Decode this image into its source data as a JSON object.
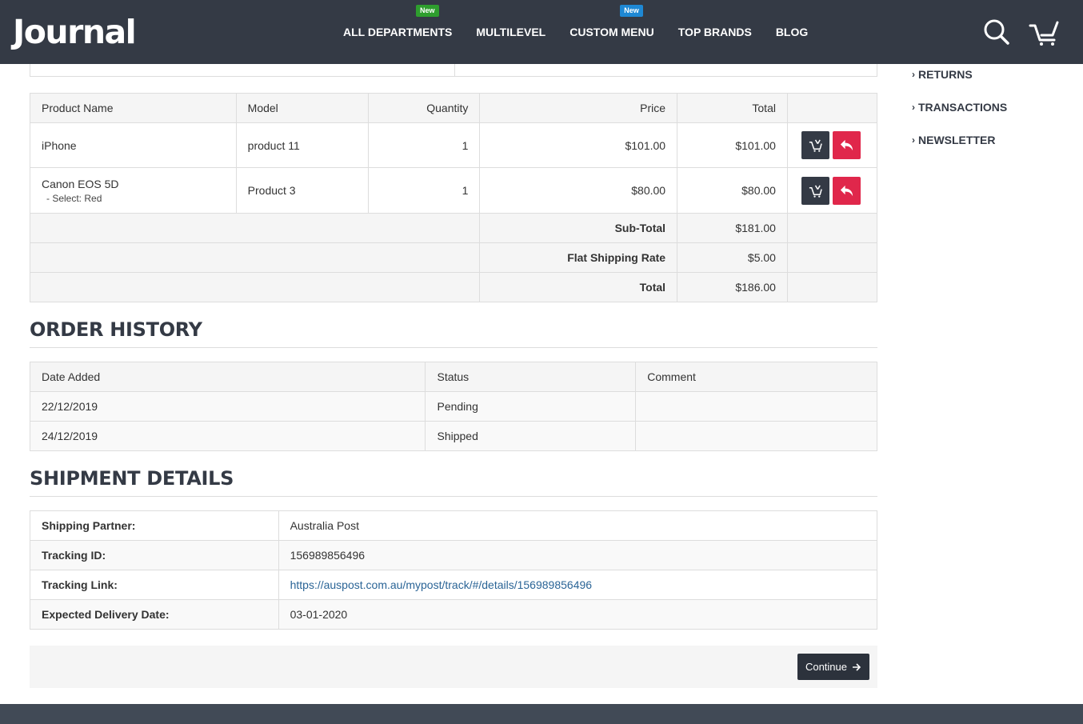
{
  "header": {
    "logo": "Journal",
    "nav": [
      {
        "label": "ALL DEPARTMENTS",
        "badge": "New",
        "badge_color": "#2e9e2e"
      },
      {
        "label": "MULTILEVEL",
        "badge": ""
      },
      {
        "label": "CUSTOM MENU",
        "badge": "New",
        "badge_color": "#1e88d4"
      },
      {
        "label": "TOP BRANDS",
        "badge": ""
      },
      {
        "label": "BLOG",
        "badge": ""
      }
    ],
    "icons": [
      "search-icon",
      "cart-icon"
    ]
  },
  "products": {
    "headers": [
      "Product Name",
      "Model",
      "Quantity",
      "Price",
      "Total",
      ""
    ],
    "rows": [
      {
        "name": "iPhone",
        "option": "",
        "model": "product 11",
        "quantity": "1",
        "price": "$101.00",
        "total": "$101.00"
      },
      {
        "name": "Canon EOS 5D",
        "option": "- Select: Red",
        "model": "Product 3",
        "quantity": "1",
        "price": "$80.00",
        "total": "$80.00"
      }
    ],
    "totals": [
      {
        "label": "Sub-Total",
        "value": "$181.00"
      },
      {
        "label": "Flat Shipping Rate",
        "value": "$5.00"
      },
      {
        "label": "Total",
        "value": "$186.00"
      }
    ]
  },
  "order_history": {
    "title": "ORDER HISTORY",
    "headers": [
      "Date Added",
      "Status",
      "Comment"
    ],
    "rows": [
      {
        "date": "22/12/2019",
        "status": "Pending",
        "comment": ""
      },
      {
        "date": "24/12/2019",
        "status": "Shipped",
        "comment": ""
      }
    ]
  },
  "shipment": {
    "title": "SHIPMENT DETAILS",
    "rows": [
      {
        "label": "Shipping Partner:",
        "value": "Australia Post"
      },
      {
        "label": "Tracking ID:",
        "value": "156989856496"
      },
      {
        "label": "Tracking Link:",
        "value": "https://auspost.com.au/mypost/track/#/details/156989856496"
      },
      {
        "label": "Expected Delivery Date:",
        "value": "03-01-2020"
      }
    ]
  },
  "continue_label": "Continue",
  "sidebar": {
    "items": [
      "RETURNS",
      "TRANSACTIONS",
      "NEWSLETTER"
    ]
  },
  "colors": {
    "header_bg": "#343a45",
    "accent_red": "#e0274b",
    "footer_bg": "#414a56"
  }
}
